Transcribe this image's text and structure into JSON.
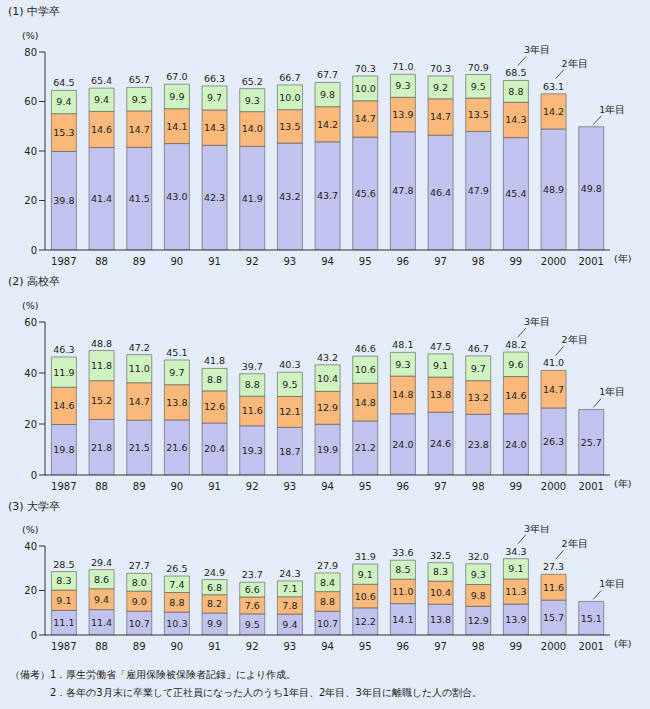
{
  "chart_data": [
    {
      "type": "bar",
      "title": "(1) 中学卒",
      "y_label": "(%)",
      "x_label": "(年)",
      "stacked": true,
      "data_labels": true,
      "grid": false,
      "categories": [
        "1987",
        "88",
        "89",
        "90",
        "91",
        "92",
        "93",
        "94",
        "95",
        "96",
        "97",
        "98",
        "99",
        "2000",
        "2001"
      ],
      "series": [
        {
          "name": "1年目",
          "color": "#c2c2ee",
          "values": [
            39.8,
            41.4,
            41.5,
            43.0,
            42.3,
            41.9,
            43.2,
            43.7,
            45.6,
            47.8,
            46.4,
            47.9,
            45.4,
            48.9,
            49.8
          ]
        },
        {
          "name": "2年目",
          "color": "#f9b97a",
          "values": [
            15.3,
            14.6,
            14.7,
            14.1,
            14.3,
            14.0,
            13.5,
            14.2,
            14.7,
            13.9,
            14.7,
            13.5,
            14.3,
            14.2,
            null
          ]
        },
        {
          "name": "3年目",
          "color": "#cff3c0",
          "values": [
            9.4,
            9.4,
            9.5,
            9.9,
            9.7,
            9.3,
            10.0,
            9.8,
            10.0,
            9.3,
            9.2,
            9.5,
            8.8,
            null,
            null
          ]
        }
      ],
      "totals": [
        64.5,
        65.4,
        65.7,
        67.0,
        66.3,
        65.2,
        66.7,
        67.7,
        70.3,
        71.0,
        70.3,
        70.9,
        68.5,
        63.1,
        null
      ],
      "annotations": [
        {
          "text": "3年目",
          "category": "99"
        },
        {
          "text": "2年目",
          "category": "2000"
        },
        {
          "text": "1年目",
          "category": "2001"
        }
      ],
      "ylim": [
        0,
        80
      ],
      "yticks": [
        0,
        20,
        40,
        60,
        80
      ]
    },
    {
      "type": "bar",
      "title": "(2) 高校卒",
      "y_label": "(%)",
      "x_label": "(年)",
      "stacked": true,
      "data_labels": true,
      "grid": false,
      "categories": [
        "1987",
        "88",
        "89",
        "90",
        "91",
        "92",
        "93",
        "94",
        "95",
        "96",
        "97",
        "98",
        "99",
        "2000",
        "2001"
      ],
      "series": [
        {
          "name": "1年目",
          "color": "#c2c2ee",
          "values": [
            19.8,
            21.8,
            21.5,
            21.6,
            20.4,
            19.3,
            18.7,
            19.9,
            21.2,
            24.0,
            24.6,
            23.8,
            24.0,
            26.3,
            25.7
          ]
        },
        {
          "name": "2年目",
          "color": "#f9b97a",
          "values": [
            14.6,
            15.2,
            14.7,
            13.8,
            12.6,
            11.6,
            12.1,
            12.9,
            14.8,
            14.8,
            13.8,
            13.2,
            14.6,
            14.7,
            null
          ]
        },
        {
          "name": "3年目",
          "color": "#cff3c0",
          "values": [
            11.9,
            11.8,
            11.0,
            9.7,
            8.8,
            8.8,
            9.5,
            10.4,
            10.6,
            9.3,
            9.1,
            9.7,
            9.6,
            null,
            null
          ]
        }
      ],
      "totals": [
        46.3,
        48.8,
        47.2,
        45.1,
        41.8,
        39.7,
        40.3,
        43.2,
        46.6,
        48.1,
        47.5,
        46.7,
        48.2,
        41.0,
        null
      ],
      "annotations": [
        {
          "text": "3年目",
          "category": "99"
        },
        {
          "text": "2年目",
          "category": "2000"
        },
        {
          "text": "1年目",
          "category": "2001"
        }
      ],
      "ylim": [
        0,
        60
      ],
      "yticks": [
        0,
        20,
        40,
        60
      ]
    },
    {
      "type": "bar",
      "title": "(3) 大学卒",
      "y_label": "(%)",
      "x_label": "(年)",
      "stacked": true,
      "data_labels": true,
      "grid": false,
      "categories": [
        "1987",
        "88",
        "89",
        "90",
        "91",
        "92",
        "93",
        "94",
        "95",
        "96",
        "97",
        "98",
        "99",
        "2000",
        "2001"
      ],
      "series": [
        {
          "name": "1年目",
          "color": "#c2c2ee",
          "values": [
            11.1,
            11.4,
            10.7,
            10.3,
            9.9,
            9.5,
            9.4,
            10.7,
            12.2,
            14.1,
            13.8,
            12.9,
            13.9,
            15.7,
            15.1
          ]
        },
        {
          "name": "2年目",
          "color": "#f9b97a",
          "values": [
            9.1,
            9.4,
            9.0,
            8.8,
            8.2,
            7.6,
            7.8,
            8.8,
            10.6,
            11.0,
            10.4,
            9.8,
            11.3,
            11.6,
            null
          ]
        },
        {
          "name": "3年目",
          "color": "#cff3c0",
          "values": [
            8.3,
            8.6,
            8.0,
            7.4,
            6.8,
            6.6,
            7.1,
            8.4,
            9.1,
            8.5,
            8.3,
            9.3,
            9.1,
            null,
            null
          ]
        }
      ],
      "totals": [
        28.5,
        29.4,
        27.7,
        26.5,
        24.9,
        23.7,
        24.3,
        27.9,
        31.9,
        33.6,
        32.5,
        32.0,
        34.3,
        27.3,
        null
      ],
      "annotations": [
        {
          "text": "3年目",
          "category": "99"
        },
        {
          "text": "2年目",
          "category": "2000"
        },
        {
          "text": "1年目",
          "category": "2001"
        }
      ],
      "ylim": [
        0,
        40
      ],
      "yticks": [
        0,
        20,
        40
      ]
    }
  ],
  "notes": [
    "（備考）1．厚生労働省「雇用保険被保険者記録」により作成。",
    "2．各年の3月末に卒業して正社員になった人のうち1年目、2年目、3年目に離職した人の割合。"
  ]
}
